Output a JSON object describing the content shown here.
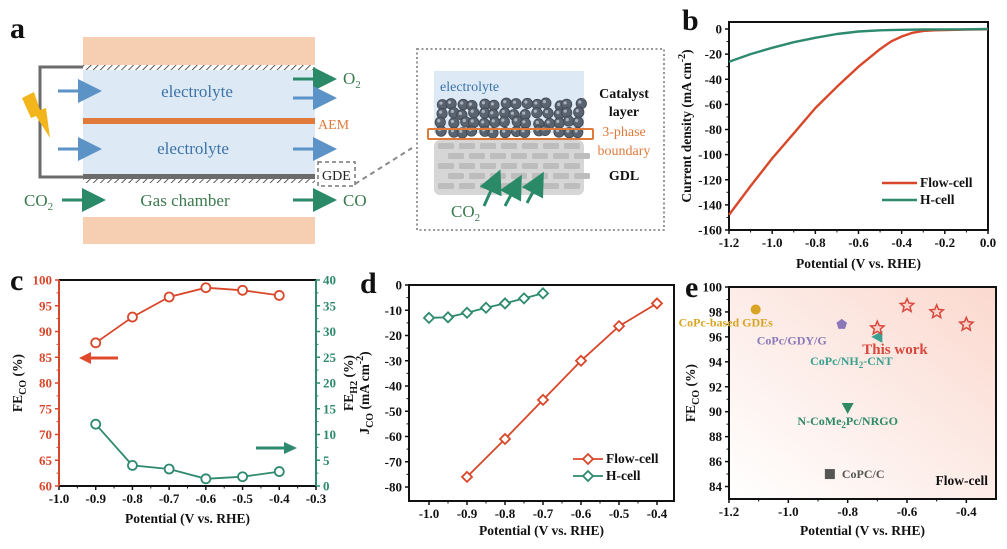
{
  "panel_labels": {
    "a": "a",
    "b": "b",
    "c": "c",
    "d": "d",
    "e": "e"
  },
  "diagram": {
    "electrolyte_top": "electrolyte",
    "electrolyte_bottom": "electrolyte",
    "aem": "AEM",
    "gde": "GDE",
    "co2_in": "CO",
    "co2_in_sub": "2",
    "gas_chamber": "Gas chamber",
    "o2_out": "O",
    "o2_out_sub": "2",
    "co_out": "CO",
    "inset_electrolyte": "electrolyte",
    "catalyst_layer_1": "Catalyst",
    "catalyst_layer_2": "layer",
    "three_phase_1": "3-phase",
    "three_phase_2": "boundary",
    "gdl": "GDL",
    "inset_co2": "CO",
    "inset_co2_sub": "2",
    "colors": {
      "electrolyte_fill": "#ddeaf6",
      "plate_fill": "#f6cfb2",
      "aem": "#e07a3a",
      "arrow_blue": "#5b93c7",
      "arrow_green": "#2a8a68",
      "text_blue": "#3c72a8",
      "text_green": "#3a7a4e",
      "lightning": "#f3b51c",
      "wire": "#6b6b6b"
    }
  },
  "chart_data": [
    {
      "id": "b",
      "type": "line",
      "xlabel": "Potential (V vs. RHE)",
      "ylabel": "Current density (mA cm",
      "ylabel_sup": "-2",
      "ylabel_end": ")",
      "xlim": [
        -1.2,
        0.0
      ],
      "ylim": [
        -160,
        0
      ],
      "xticks": [
        "-1.2",
        "-1.0",
        "-0.8",
        "-0.6",
        "-0.4",
        "-0.2",
        "0.0"
      ],
      "yticks": [
        "0",
        "-20",
        "-40",
        "-60",
        "-80",
        "-100",
        "-120",
        "-140",
        "-160"
      ],
      "legend_position": "bottom-right",
      "series": [
        {
          "name": "Flow-cell",
          "color": "#d9472b",
          "x": [
            -1.2,
            -1.1,
            -1.0,
            -0.9,
            -0.8,
            -0.7,
            -0.6,
            -0.5,
            -0.45,
            -0.4,
            -0.35,
            -0.3,
            -0.25,
            -0.2,
            -0.1,
            0.0
          ],
          "y": [
            -148,
            -125,
            -103,
            -83,
            -63,
            -46,
            -30,
            -16,
            -10,
            -6,
            -3,
            -1.5,
            -1,
            -0.8,
            -0.5,
            -0.2
          ]
        },
        {
          "name": "H-cell",
          "color": "#2e8a6e",
          "x": [
            -1.2,
            -1.1,
            -1.0,
            -0.9,
            -0.8,
            -0.7,
            -0.6,
            -0.5,
            -0.4,
            -0.3,
            -0.2,
            -0.1,
            0.0
          ],
          "y": [
            -26,
            -20,
            -15,
            -10.5,
            -7,
            -4,
            -2,
            -1,
            -0.6,
            -0.4,
            -0.3,
            -0.2,
            0
          ]
        }
      ]
    },
    {
      "id": "c",
      "type": "line",
      "xlabel": "Potential (V vs. RHE)",
      "ylabel_left": "FE",
      "ylabel_left_sub": "CO",
      "ylabel_left_end": " (%)",
      "ylabel_right": "FE",
      "ylabel_right_sub": "H",
      "ylabel_right_subsub": "2",
      "ylabel_right_end": " (%)",
      "xlim": [
        -1.0,
        -0.3
      ],
      "ylim_left": [
        60,
        100
      ],
      "ylim_right": [
        0,
        40
      ],
      "xticks": [
        "-1.0",
        "-0.9",
        "-0.8",
        "-0.7",
        "-0.6",
        "-0.5",
        "-0.4",
        "-0.3"
      ],
      "yticks_left": [
        "60",
        "65",
        "70",
        "75",
        "80",
        "85",
        "90",
        "95",
        "100"
      ],
      "yticks_right": [
        "0",
        "5",
        "10",
        "15",
        "20",
        "25",
        "30",
        "35",
        "40"
      ],
      "series": [
        {
          "name": "FE_CO",
          "axis": "left",
          "color": "#d9472b",
          "x": [
            -0.9,
            -0.8,
            -0.7,
            -0.6,
            -0.5,
            -0.4
          ],
          "y": [
            87.8,
            92.8,
            96.7,
            98.5,
            98.0,
            97.0
          ]
        },
        {
          "name": "FE_H2",
          "axis": "right",
          "color": "#2e8a6e",
          "x": [
            -0.9,
            -0.8,
            -0.7,
            -0.6,
            -0.5,
            -0.4
          ],
          "y": [
            12.0,
            4.0,
            3.3,
            1.4,
            1.8,
            2.8
          ]
        }
      ],
      "annotations": [
        {
          "type": "arrow",
          "direction": "left",
          "color": "#e04a2c",
          "meaning": "FE_CO on left axis"
        },
        {
          "type": "arrow",
          "direction": "right",
          "color": "#2e8a6e",
          "meaning": "FE_H2 on right axis"
        }
      ]
    },
    {
      "id": "d",
      "type": "line",
      "xlabel": "Potential (V vs. RHE)",
      "ylabel": "J",
      "ylabel_sub": "CO",
      "ylabel_mid": " (mA cm",
      "ylabel_sup": "-2",
      "ylabel_end": ")",
      "xlim": [
        -1.05,
        -0.35
      ],
      "ylim": [
        -85.5,
        0
      ],
      "xticks": [
        "-1.0",
        "-0.9",
        "-0.8",
        "-0.7",
        "-0.6",
        "-0.5",
        "-0.4"
      ],
      "yticks": [
        "0",
        "-10",
        "-20",
        "-30",
        "-40",
        "-50",
        "-60",
        "-70",
        "-80"
      ],
      "legend_position": "bottom-right",
      "series": [
        {
          "name": "Flow-cell",
          "color": "#d9472b",
          "marker": "diamond",
          "x": [
            -0.9,
            -0.8,
            -0.7,
            -0.6,
            -0.5,
            -0.4
          ],
          "y": [
            -76,
            -61,
            -45.5,
            -30,
            -16.3,
            -7.3
          ]
        },
        {
          "name": "H-cell",
          "color": "#2e8a6e",
          "marker": "diamond",
          "x": [
            -1.0,
            -0.95,
            -0.9,
            -0.85,
            -0.8,
            -0.75,
            -0.7
          ],
          "y": [
            -13,
            -12.8,
            -11,
            -9,
            -7.3,
            -5.3,
            -3.3
          ]
        }
      ]
    },
    {
      "id": "e",
      "type": "scatter",
      "xlabel": "Potential (V vs. RHE)",
      "ylabel": "FE",
      "ylabel_sub": "CO",
      "ylabel_end": " (%)",
      "xlim": [
        -1.2,
        -0.3
      ],
      "ylim": [
        83,
        100
      ],
      "xticks": [
        "-1.2",
        "-1.0",
        "-0.8",
        "-0.6",
        "-0.4"
      ],
      "yticks": [
        "84",
        "86",
        "88",
        "90",
        "92",
        "94",
        "96",
        "98",
        "100"
      ],
      "corner_label": "Flow-cell",
      "background_gradient": [
        "#fde4dc",
        "#ffffff"
      ],
      "points": [
        {
          "label": "CoPc-based GDEs",
          "marker": "circle",
          "color": "#d9a424",
          "x": -1.11,
          "y": 98.2
        },
        {
          "label": "CoPc/GDY/G",
          "marker": "pentagon",
          "color": "#8a78b8",
          "x": -0.82,
          "y": 97.0
        },
        {
          "label": "CoPc/NH",
          "label_sub": "2",
          "label_end": "-CNT",
          "marker": "triangle-left",
          "color": "#3aa08f",
          "x": -0.7,
          "y": 96.0
        },
        {
          "label": "N-CoMe",
          "label_sub": "2",
          "label_end": "Pc/NRGO",
          "marker": "triangle-down",
          "color": "#2e8a62",
          "x": -0.8,
          "y": 90.3
        },
        {
          "label": "CoPC/C",
          "marker": "square",
          "color": "#555555",
          "x": -0.86,
          "y": 85.0
        }
      ],
      "this_work": {
        "label": "This work",
        "marker": "star",
        "color": "#d9473d",
        "x": [
          -0.7,
          -0.6,
          -0.5,
          -0.4
        ],
        "y": [
          96.7,
          98.5,
          98.0,
          97.0
        ]
      }
    }
  ]
}
